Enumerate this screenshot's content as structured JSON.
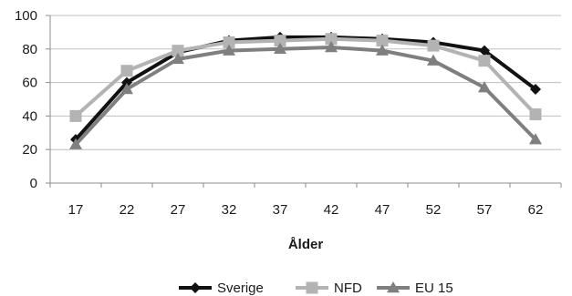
{
  "chart_data": {
    "type": "line",
    "title": "",
    "xlabel": "Ålder",
    "ylabel": "",
    "x": [
      17,
      22,
      27,
      32,
      37,
      42,
      47,
      52,
      57,
      62
    ],
    "ylim": [
      0,
      100
    ],
    "yticks": [
      0,
      20,
      40,
      60,
      80,
      100
    ],
    "grid": "horizontal",
    "legend_position": "bottom",
    "series": [
      {
        "name": "Sverige",
        "color": "#111111",
        "marker": "diamond",
        "values": [
          26,
          60,
          78,
          85,
          87,
          87,
          86,
          84,
          79,
          56
        ]
      },
      {
        "name": "NFD",
        "color": "#b3b3b3",
        "marker": "square",
        "values": [
          40,
          67,
          79,
          84,
          85,
          86,
          85,
          82,
          73,
          41
        ]
      },
      {
        "name": "EU 15",
        "color": "#7f7f7f",
        "marker": "triangle",
        "values": [
          23,
          56,
          74,
          79,
          80,
          81,
          79,
          73,
          57,
          26
        ]
      }
    ]
  }
}
